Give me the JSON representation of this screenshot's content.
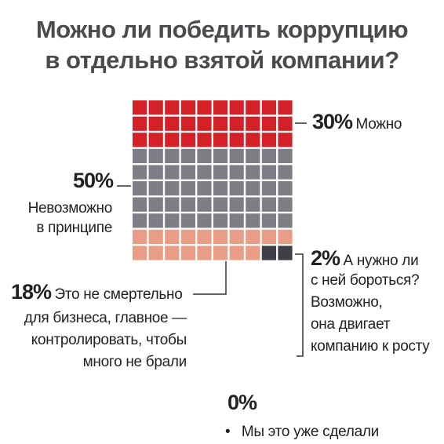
{
  "title_lines": [
    "Можно ли победить коррупцию",
    "в отдельно взятой компании?"
  ],
  "chart_data": {
    "type": "waffle",
    "title": "Можно ли победить коррупцию в отдельно взятой компании?",
    "grid": {
      "rows": 10,
      "cols": 10,
      "unit_percent": 1
    },
    "series": [
      {
        "name": "Можно",
        "percent_label": "30%",
        "value": 30,
        "color": "#d42128"
      },
      {
        "name": "Невозможно в принципе",
        "percent_label": "50%",
        "value": 50,
        "color": "#7d7d86"
      },
      {
        "name": "Это не смертельно для бизнеса, главное — контролировать, чтобы много не брали",
        "percent_label": "18%",
        "value": 18,
        "color": "#e99c86"
      },
      {
        "name": "А нужно ли с ней бороться? Возможно, она двигает компанию к росту",
        "percent_label": "2%",
        "value": 2,
        "color": "#3f3f47"
      },
      {
        "name": "Мы это уже сделали",
        "percent_label": "0%",
        "value": 0,
        "color": "#222222"
      }
    ]
  },
  "labels": {
    "s30": {
      "pct": "30%",
      "text": "Можно"
    },
    "s50": {
      "pct": "50%",
      "line1": "Невозможно",
      "line2": "в принципе"
    },
    "s18": {
      "pct": "18%",
      "line1": "Это не смертельно",
      "line2": "для бизнеса, главное —",
      "line3": "контролировать, чтобы",
      "line4": "много не брали"
    },
    "s2": {
      "pct": "2%",
      "line1": "А нужно ли",
      "line2": "с ней бороться?",
      "line3": "Возможно,",
      "line4": "она двигает",
      "line5": "компанию к росту"
    },
    "s0": {
      "pct": "0%",
      "bullet": "•",
      "text": "Мы это уже сделали"
    }
  }
}
